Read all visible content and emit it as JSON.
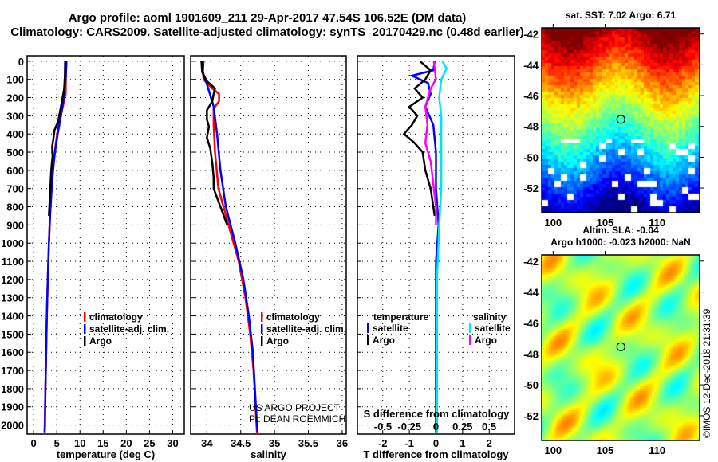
{
  "title_line1": "Argo profile: aoml 1901609_211 29-Apr-2017 47.54S 106.52E (DM data)",
  "title_line2": "Climatology: CARS2009. Satellite-adjusted climatology: synTS_20170429.nc (0.48d earlier)",
  "credit_line1": "US ARGO PROJECT",
  "credit_line2": "PI: DEAN ROEMMICH",
  "watermark": "©IMOS 12-Dec-2018 21:31:39",
  "colors": {
    "climatology": "#ff0000",
    "satellite": "#0000ff",
    "argo": "#000000",
    "sal_satellite": "#00e5ee",
    "sal_argo": "#ff00ff"
  },
  "chart_data": [
    {
      "type": "line",
      "xlabel": "temperature (deg C)",
      "xlim": [
        -1.4,
        32.5
      ],
      "xticks": [
        "0",
        "5",
        "10",
        "15",
        "20",
        "25",
        "30"
      ],
      "ylim": [
        2050,
        -30
      ],
      "yticks": [
        "0",
        "100",
        "200",
        "300",
        "400",
        "500",
        "600",
        "700",
        "800",
        "900",
        "1000",
        "1100",
        "1200",
        "1300",
        "1400",
        "1500",
        "1600",
        "1700",
        "1800",
        "1900",
        "2000"
      ],
      "legend": [
        "climatology",
        "satellite-adj. clim.",
        "Argo"
      ],
      "series": [
        {
          "name": "climatology",
          "points": [
            [
              0,
              7.0
            ],
            [
              100,
              6.95
            ],
            [
              180,
              6.9
            ],
            [
              250,
              6.3
            ],
            [
              350,
              5.4
            ],
            [
              450,
              4.8
            ],
            [
              550,
              4.3
            ],
            [
              650,
              4.0
            ],
            [
              800,
              3.6
            ],
            [
              1000,
              3.3
            ],
            [
              1200,
              3.05
            ],
            [
              1400,
              2.85
            ],
            [
              1600,
              2.7
            ],
            [
              1800,
              2.55
            ],
            [
              2000,
              2.4
            ],
            [
              2040,
              2.35
            ]
          ]
        },
        {
          "name": "satellite-adj. clim.",
          "points": [
            [
              0,
              7.1
            ],
            [
              100,
              6.9
            ],
            [
              200,
              6.5
            ],
            [
              300,
              5.9
            ],
            [
              400,
              5.2
            ],
            [
              500,
              4.6
            ],
            [
              600,
              4.2
            ],
            [
              700,
              3.9
            ],
            [
              850,
              3.55
            ],
            [
              1000,
              3.3
            ],
            [
              1200,
              3.05
            ],
            [
              1400,
              2.85
            ],
            [
              1600,
              2.7
            ],
            [
              1800,
              2.55
            ],
            [
              2000,
              2.45
            ],
            [
              2040,
              2.4
            ]
          ]
        },
        {
          "name": "Argo",
          "points": [
            [
              0,
              6.8
            ],
            [
              80,
              6.75
            ],
            [
              150,
              6.6
            ],
            [
              250,
              5.9
            ],
            [
              330,
              5.3
            ],
            [
              380,
              4.5
            ],
            [
              420,
              4.3
            ],
            [
              470,
              4.0
            ],
            [
              520,
              4.1
            ],
            [
              600,
              3.8
            ],
            [
              700,
              3.6
            ],
            [
              800,
              3.4
            ],
            [
              850,
              3.3
            ]
          ]
        }
      ]
    },
    {
      "type": "line",
      "xlabel": "salinity",
      "xlim": [
        33.76,
        36.06
      ],
      "xticks": [
        "34",
        "34.5",
        "35",
        "35.5",
        "36"
      ],
      "ylim": [
        2050,
        -30
      ],
      "legend": [
        "climatology",
        "satellite-adj. clim.",
        "Argo"
      ],
      "series": [
        {
          "name": "climatology",
          "points": [
            [
              0,
              33.93
            ],
            [
              100,
              33.95
            ],
            [
              150,
              34.08
            ],
            [
              180,
              34.18
            ],
            [
              220,
              34.18
            ],
            [
              260,
              34.1
            ],
            [
              350,
              34.1
            ],
            [
              500,
              34.12
            ],
            [
              700,
              34.17
            ],
            [
              900,
              34.32
            ],
            [
              1100,
              34.47
            ],
            [
              1300,
              34.57
            ],
            [
              1500,
              34.64
            ],
            [
              1700,
              34.69
            ],
            [
              1900,
              34.72
            ],
            [
              2040,
              34.74
            ]
          ]
        },
        {
          "name": "satellite-adj. clim.",
          "points": [
            [
              0,
              33.95
            ],
            [
              60,
              33.94
            ],
            [
              150,
              34.02
            ],
            [
              250,
              34.1
            ],
            [
              400,
              34.15
            ],
            [
              600,
              34.2
            ],
            [
              800,
              34.28
            ],
            [
              1000,
              34.42
            ],
            [
              1200,
              34.54
            ],
            [
              1400,
              34.62
            ],
            [
              1600,
              34.68
            ],
            [
              1800,
              34.71
            ],
            [
              2000,
              34.74
            ],
            [
              2040,
              34.75
            ]
          ]
        },
        {
          "name": "Argo",
          "points": [
            [
              0,
              33.92
            ],
            [
              60,
              33.93
            ],
            [
              110,
              34.0
            ],
            [
              150,
              34.12
            ],
            [
              180,
              34.1
            ],
            [
              220,
              34.08
            ],
            [
              270,
              34.0
            ],
            [
              320,
              34.0
            ],
            [
              360,
              34.03
            ],
            [
              420,
              34.0
            ],
            [
              480,
              34.05
            ],
            [
              560,
              34.08
            ],
            [
              640,
              34.1
            ],
            [
              700,
              34.1
            ],
            [
              800,
              34.2
            ],
            [
              900,
              34.3
            ]
          ]
        }
      ]
    },
    {
      "type": "line",
      "xlabel": "T difference from climatology",
      "xlim": [
        -2.95,
        2.95
      ],
      "xticks": [
        "-2",
        "-1",
        "0",
        "1",
        "2"
      ],
      "x2label": "S difference from climatology",
      "x2lim": [
        -0.74,
        0.74
      ],
      "x2ticks": [
        "-0.5",
        "-0.25",
        "0",
        "0.25",
        "0.5"
      ],
      "ylim": [
        2050,
        -30
      ],
      "legend_temperature": {
        "title": "temperature",
        "items": [
          "satellite",
          "Argo"
        ]
      },
      "legend_salinity": {
        "title": "salinity",
        "items": [
          "satellite",
          "Argo"
        ]
      },
      "series": [
        {
          "name": "T satellite",
          "axis": "T",
          "points": [
            [
              0,
              -0.05
            ],
            [
              50,
              -0.1
            ],
            [
              80,
              -0.9
            ],
            [
              120,
              -0.3
            ],
            [
              180,
              -0.2
            ],
            [
              250,
              -0.4
            ],
            [
              350,
              -0.1
            ],
            [
              500,
              0.0
            ],
            [
              700,
              0.0
            ],
            [
              900,
              0.1
            ],
            [
              1100,
              0.0
            ],
            [
              1400,
              0.0
            ],
            [
              2040,
              0.0
            ]
          ]
        },
        {
          "name": "T Argo",
          "axis": "T",
          "points": [
            [
              0,
              -0.6
            ],
            [
              50,
              -0.2
            ],
            [
              100,
              -0.4
            ],
            [
              150,
              -0.8
            ],
            [
              200,
              -0.5
            ],
            [
              250,
              -1.0
            ],
            [
              300,
              -0.7
            ],
            [
              350,
              -0.9
            ],
            [
              400,
              -1.2
            ],
            [
              450,
              -0.8
            ],
            [
              500,
              -0.5
            ],
            [
              600,
              -0.4
            ],
            [
              700,
              -0.2
            ],
            [
              800,
              -0.1
            ],
            [
              850,
              -0.05
            ]
          ]
        },
        {
          "name": "S satellite",
          "axis": "S",
          "points": [
            [
              0,
              0.06
            ],
            [
              20,
              0.08
            ],
            [
              40,
              0.1
            ],
            [
              100,
              0.05
            ],
            [
              200,
              0.03
            ],
            [
              300,
              0.05
            ],
            [
              500,
              0.05
            ],
            [
              700,
              0.05
            ],
            [
              900,
              0.03
            ],
            [
              1200,
              0.01
            ],
            [
              1600,
              0.01
            ],
            [
              2040,
              0.01
            ]
          ]
        },
        {
          "name": "S Argo",
          "axis": "S",
          "points": [
            [
              0,
              -0.02
            ],
            [
              100,
              0.0
            ],
            [
              150,
              -0.05
            ],
            [
              250,
              -0.1
            ],
            [
              350,
              -0.08
            ],
            [
              450,
              -0.1
            ],
            [
              550,
              -0.05
            ],
            [
              650,
              -0.03
            ],
            [
              800,
              0.0
            ],
            [
              900,
              0.0
            ]
          ]
        }
      ]
    },
    {
      "type": "heatmap",
      "title": "sat. SST: 7.02 Argo: 6.71",
      "xticks": [
        "100",
        "105",
        "110"
      ],
      "yticks": [
        "-42",
        "-44",
        "-46",
        "-48",
        "-50",
        "-52"
      ],
      "xlim": [
        98.9,
        114.1
      ],
      "ylim": [
        -53.6,
        -41.6
      ],
      "marker": {
        "lon": 106.52,
        "lat": -47.54
      }
    },
    {
      "type": "heatmap",
      "title_line1": "Altim. SLA: -0.04",
      "title_line2": "Argo h1000: -0.023 h2000: NaN",
      "xticks": [
        "100",
        "105",
        "110"
      ],
      "yticks": [
        "-42",
        "-44",
        "-46",
        "-48",
        "-50",
        "-52"
      ],
      "xlim": [
        98.9,
        114.1
      ],
      "ylim": [
        -53.6,
        -41.6
      ],
      "marker": {
        "lon": 106.52,
        "lat": -47.54
      }
    }
  ]
}
